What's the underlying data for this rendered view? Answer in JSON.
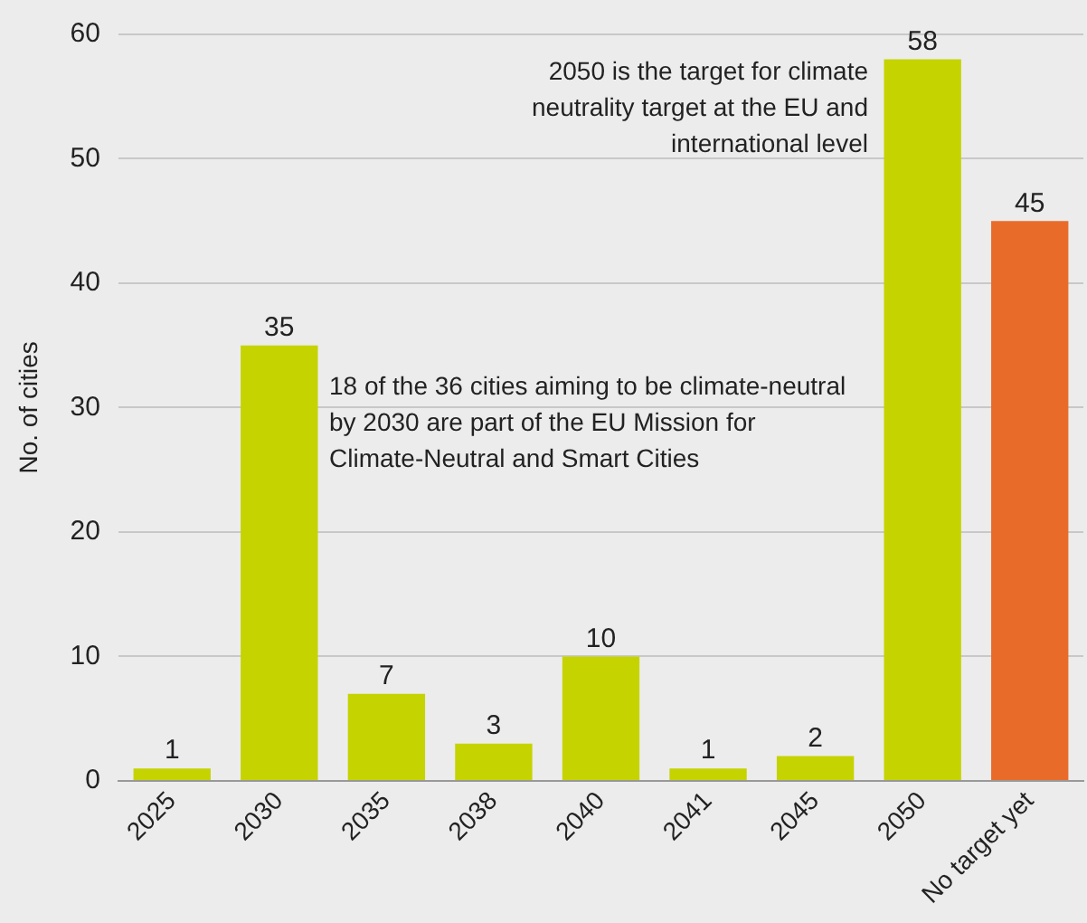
{
  "chart_data": {
    "type": "bar",
    "ylabel": "No. of cities",
    "categories": [
      "2025",
      "2030",
      "2035",
      "2038",
      "2040",
      "2041",
      "2045",
      "2050",
      "No target yet"
    ],
    "values": [
      1,
      35,
      7,
      3,
      10,
      1,
      2,
      58,
      45
    ],
    "colors": [
      "#c5d300",
      "#c5d300",
      "#c5d300",
      "#c5d300",
      "#c5d300",
      "#c5d300",
      "#c5d300",
      "#c5d300",
      "#e96b2a"
    ],
    "ylim": [
      0,
      60
    ],
    "yticks": [
      0,
      10,
      20,
      30,
      40,
      50,
      60
    ],
    "grid": "y",
    "data_labels": true,
    "legend": false,
    "annotations": [
      "18 of the 36 cities aiming to be climate-neutral by 2030 are part of the EU Mission for Climate-Neutral and Smart Cities",
      "2050 is the target for climate neutrality target at the EU and international level"
    ]
  }
}
